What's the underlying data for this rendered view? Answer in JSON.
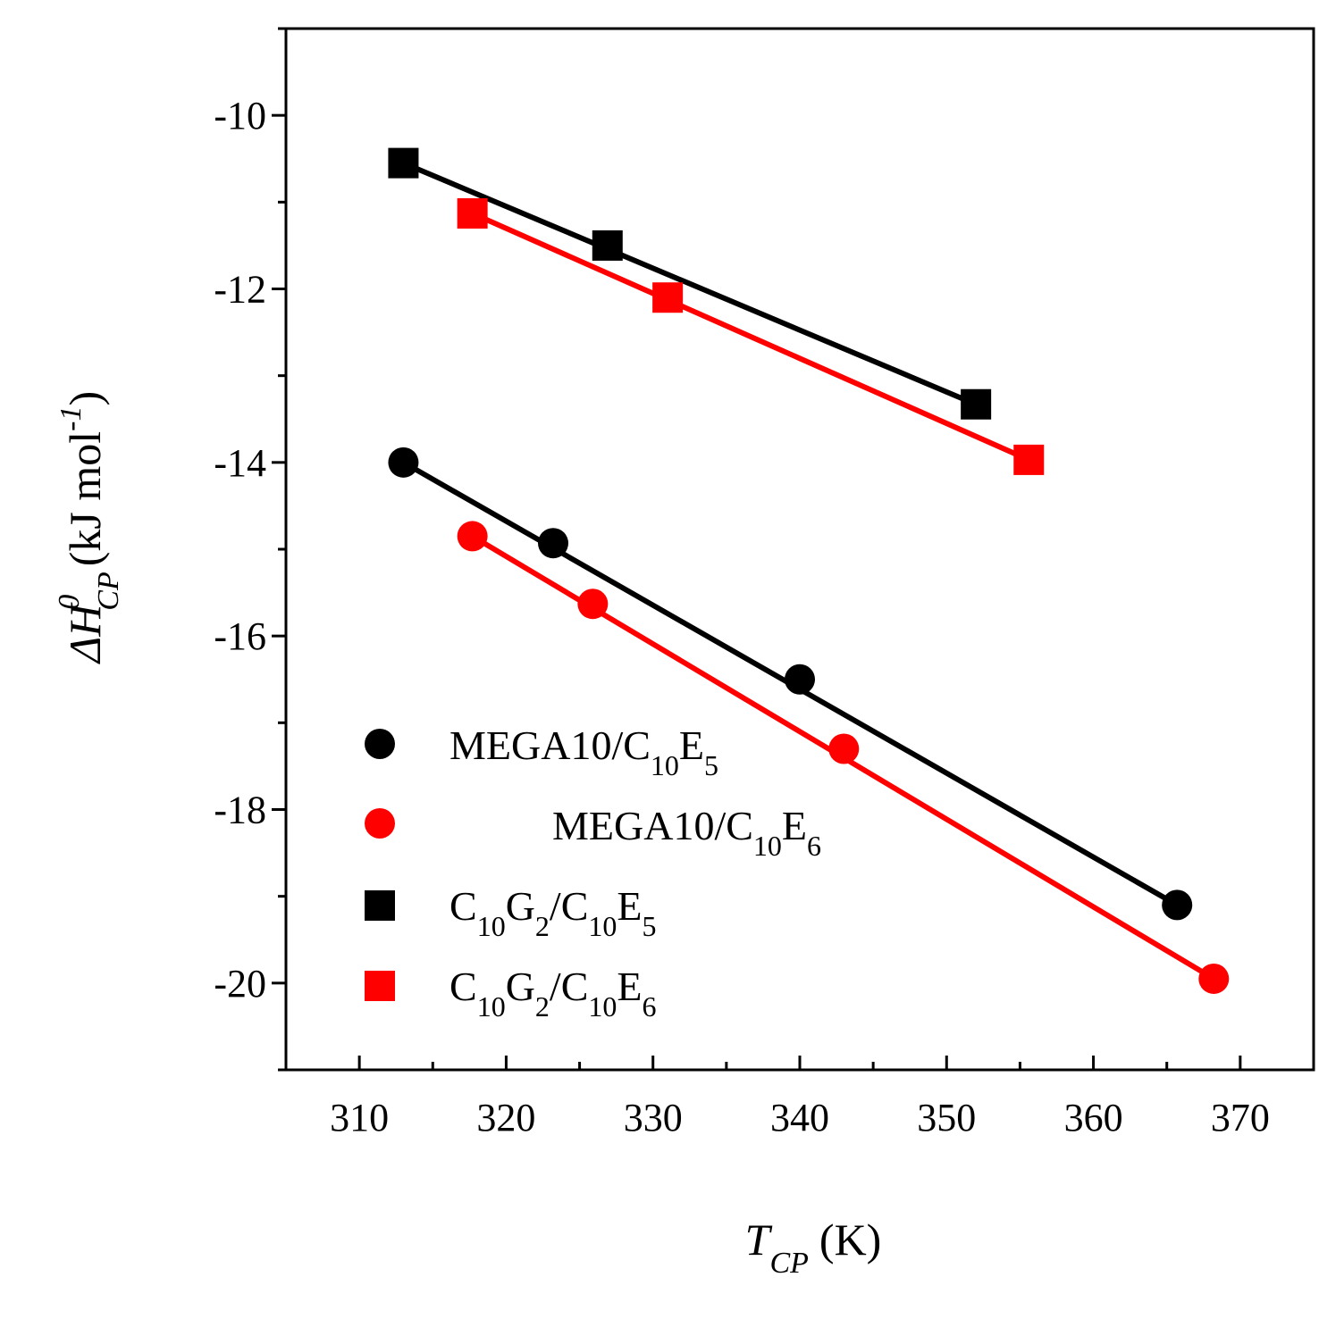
{
  "chart_data": {
    "type": "scatter",
    "title": "",
    "xlabel": {
      "main": "T",
      "sub": "CP",
      "unit": "(K)"
    },
    "ylabel": {
      "main": "ΔH",
      "sup": "0",
      "sub": "CP",
      "unit": "(kJ mol",
      "unit_sup": "-1",
      "unit_end": ")"
    },
    "xlim": [
      305,
      375
    ],
    "ylim": [
      -21,
      -9
    ],
    "xticks": [
      310,
      320,
      330,
      340,
      350,
      360,
      370
    ],
    "yticks": [
      -10,
      -12,
      -14,
      -16,
      -18,
      -20
    ],
    "xtick_labels": [
      "310",
      "320",
      "330",
      "340",
      "350",
      "360",
      "370"
    ],
    "ytick_labels": [
      "-10",
      "-12",
      "-14",
      "-16",
      "-18",
      "-20"
    ],
    "legend_position": "bottom-left",
    "series": [
      {
        "id": "mega10-c10e5",
        "legend": {
          "main": "MEGA10/C",
          "sub1": "10",
          "mid": "E",
          "sub2": "5"
        },
        "marker": "circle",
        "color": "#000000",
        "x": [
          313,
          323.2,
          340,
          365.7
        ],
        "y": [
          -14.0,
          -14.93,
          -16.5,
          -19.1
        ],
        "fit": {
          "x": [
            313,
            365.7
          ],
          "y": [
            -14.0,
            -19.1
          ]
        }
      },
      {
        "id": "mega10-c10e6",
        "legend": {
          "main": " MEGA10/C",
          "sub1": "10",
          "mid": "E",
          "sub2": "6"
        },
        "marker": "circle",
        "color": "#ff0000",
        "x": [
          317.7,
          325.9,
          343,
          368.2
        ],
        "y": [
          -14.85,
          -15.63,
          -17.3,
          -19.95
        ],
        "fit": {
          "x": [
            317.7,
            368.2
          ],
          "y": [
            -14.85,
            -19.95
          ]
        }
      },
      {
        "id": "c10g2-c10e5",
        "legend": {
          "pre": "C",
          "sub0": "10",
          "main": "G",
          "subg": "2",
          "slash": "/C",
          "sub1": "10",
          "mid": "E",
          "sub2": "5"
        },
        "marker": "square",
        "color": "#000000",
        "x": [
          313,
          326.9,
          352
        ],
        "y": [
          -10.55,
          -11.5,
          -13.33
        ],
        "fit": {
          "x": [
            313,
            352
          ],
          "y": [
            -10.55,
            -13.33
          ]
        }
      },
      {
        "id": "c10g2-c10e6",
        "legend": {
          "pre": "C",
          "sub0": "10",
          "main": "G",
          "subg": "2",
          "slash": "/C",
          "sub1": "10",
          "mid": "E",
          "sub2": "6"
        },
        "marker": "square",
        "color": "#ff0000",
        "x": [
          317.7,
          331,
          355.6
        ],
        "y": [
          -11.13,
          -12.1,
          -13.97
        ],
        "fit": {
          "x": [
            317.7,
            355.6
          ],
          "y": [
            -11.13,
            -13.97
          ]
        }
      }
    ]
  }
}
